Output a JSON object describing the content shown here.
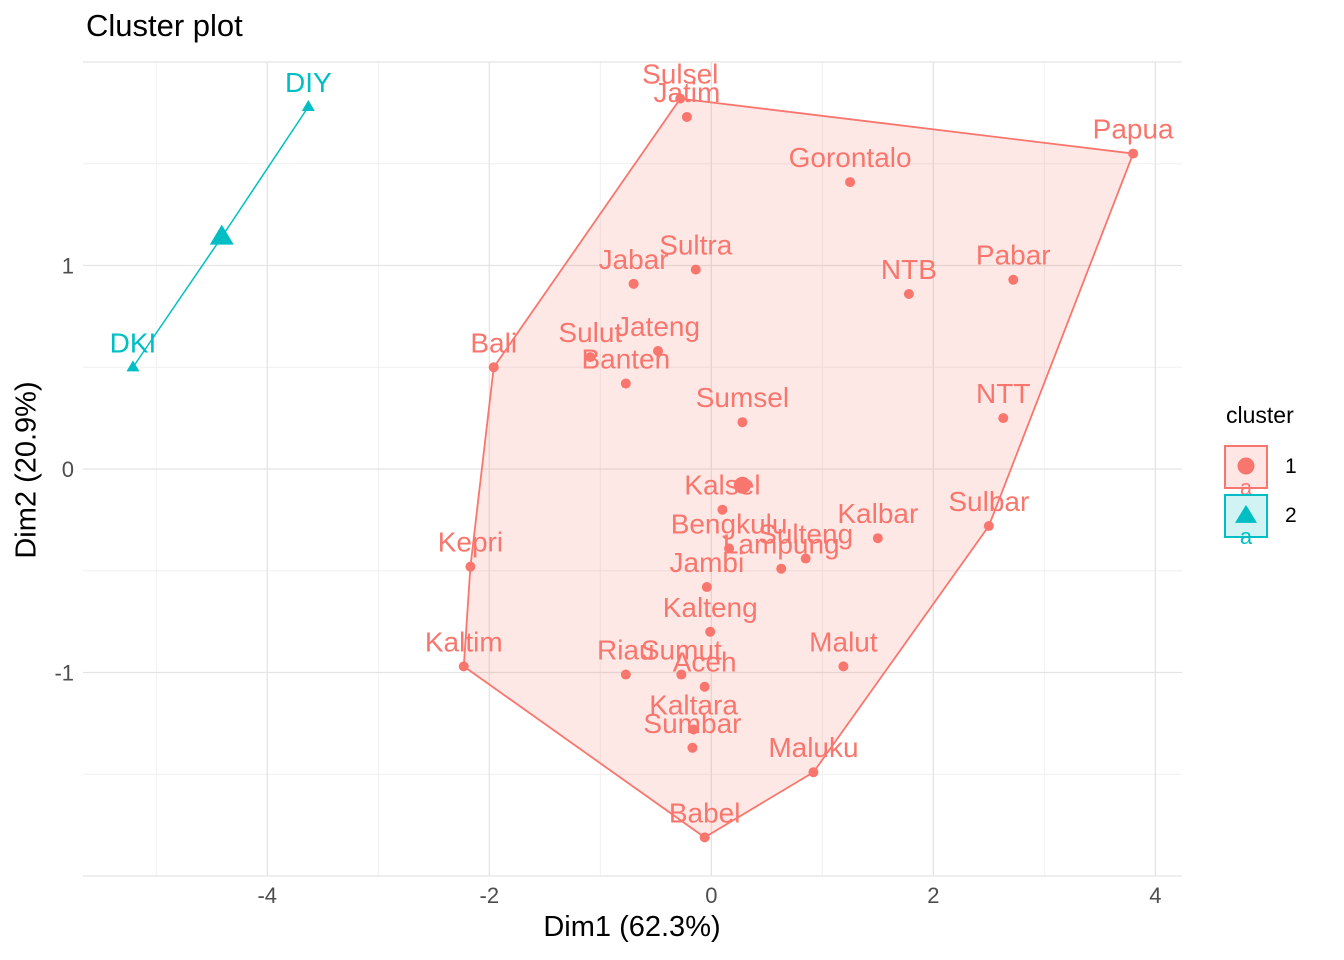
{
  "title": "Cluster plot",
  "axes": {
    "x": {
      "label": "Dim1 (62.3%)",
      "ticks": [
        -4,
        -2,
        0,
        2,
        4
      ],
      "minor": [
        -5,
        -3,
        -1,
        1,
        3
      ],
      "unlabeled_major": [],
      "lim": [
        -5.66,
        4.24
      ]
    },
    "y": {
      "label": "Dim2 (20.9%)",
      "ticks": [
        -1,
        0,
        1
      ],
      "minor": [
        -1.5,
        -0.5,
        0.5,
        1.5
      ],
      "unlabeled_major": [
        -2,
        2
      ],
      "lim": [
        -2.0,
        2.0
      ]
    }
  },
  "legend": {
    "title": "cluster",
    "entries": [
      {
        "label": "1",
        "shape": "circle",
        "color": "#F8766D",
        "key_fill": "rgba(248,118,109,0.18)",
        "key_letter": "a"
      },
      {
        "label": "2",
        "shape": "triangle",
        "color": "#00BFC4",
        "key_fill": "rgba(0,191,196,0.18)",
        "key_letter": "a"
      }
    ]
  },
  "colors": {
    "cluster1": "#F8766D",
    "cluster2": "#00BFC4",
    "hull_fill": "rgba(248,118,109,0.17)",
    "grid_major": "#e4e4e4",
    "grid_minor": "#efefef",
    "tick_text": "#4d4d4d"
  },
  "chart_data": {
    "type": "scatter",
    "title": "Cluster plot",
    "xlabel": "Dim1 (62.3%)",
    "ylabel": "Dim2 (20.9%)",
    "xlim": [
      -5.66,
      4.24
    ],
    "ylim": [
      -2.0,
      2.0
    ],
    "grid": true,
    "legend_position": "right",
    "clusters": [
      {
        "id": "1",
        "shape": "circle",
        "color": "#F8766D",
        "centroid": {
          "x": 0.28,
          "y": -0.08
        },
        "hull": [
          "Sulsel",
          "Papua",
          "Sulbar",
          "Maluku",
          "Babel",
          "Kaltim",
          "Kepri",
          "Bali"
        ],
        "spokes": false,
        "points": [
          {
            "name": "Sulsel",
            "x": -0.28,
            "y": 1.82
          },
          {
            "name": "Jatim",
            "x": -0.22,
            "y": 1.73
          },
          {
            "name": "Papua",
            "x": 3.8,
            "y": 1.55
          },
          {
            "name": "Gorontalo",
            "x": 1.25,
            "y": 1.41
          },
          {
            "name": "Sultra",
            "x": -0.14,
            "y": 0.98
          },
          {
            "name": "Jabar",
            "x": -0.7,
            "y": 0.91
          },
          {
            "name": "Pabar",
            "x": 2.72,
            "y": 0.93
          },
          {
            "name": "NTB",
            "x": 1.78,
            "y": 0.86
          },
          {
            "name": "Jateng",
            "x": -0.48,
            "y": 0.58
          },
          {
            "name": "Sulut",
            "x": -1.09,
            "y": 0.55
          },
          {
            "name": "Bali",
            "x": -1.96,
            "y": 0.5
          },
          {
            "name": "Banten",
            "x": -0.77,
            "y": 0.42
          },
          {
            "name": "NTT",
            "x": 2.63,
            "y": 0.25
          },
          {
            "name": "Sumsel",
            "x": 0.28,
            "y": 0.23
          },
          {
            "name": "Kalsel",
            "x": 0.1,
            "y": -0.2
          },
          {
            "name": "Sulbar",
            "x": 2.5,
            "y": -0.28
          },
          {
            "name": "Kalbar",
            "x": 1.5,
            "y": -0.34
          },
          {
            "name": "Bengkulu",
            "x": 0.16,
            "y": -0.39
          },
          {
            "name": "Sulteng",
            "x": 0.85,
            "y": -0.44
          },
          {
            "name": "Kepri",
            "x": -2.17,
            "y": -0.48
          },
          {
            "name": "Lampung",
            "x": 0.63,
            "y": -0.49
          },
          {
            "name": "Jambi",
            "x": -0.04,
            "y": -0.58
          },
          {
            "name": "Kalteng",
            "x": -0.01,
            "y": -0.8
          },
          {
            "name": "Kaltim",
            "x": -2.23,
            "y": -0.97
          },
          {
            "name": "Malut",
            "x": 1.19,
            "y": -0.97
          },
          {
            "name": "Riau",
            "x": -0.77,
            "y": -1.01
          },
          {
            "name": "Sumut",
            "x": -0.27,
            "y": -1.01
          },
          {
            "name": "Aceh",
            "x": -0.06,
            "y": -1.07
          },
          {
            "name": "Kaltara",
            "x": -0.16,
            "y": -1.28
          },
          {
            "name": "Sumbar",
            "x": -0.17,
            "y": -1.37
          },
          {
            "name": "Maluku",
            "x": 0.92,
            "y": -1.49
          },
          {
            "name": "Babel",
            "x": -0.06,
            "y": -1.81
          }
        ]
      },
      {
        "id": "2",
        "shape": "triangle",
        "color": "#00BFC4",
        "centroid": {
          "x": -4.41,
          "y": 1.14
        },
        "hull": [
          "DKI",
          "DIY"
        ],
        "spokes": true,
        "points": [
          {
            "name": "DKI",
            "x": -5.21,
            "y": 0.5
          },
          {
            "name": "DIY",
            "x": -3.63,
            "y": 1.78
          }
        ]
      }
    ]
  }
}
